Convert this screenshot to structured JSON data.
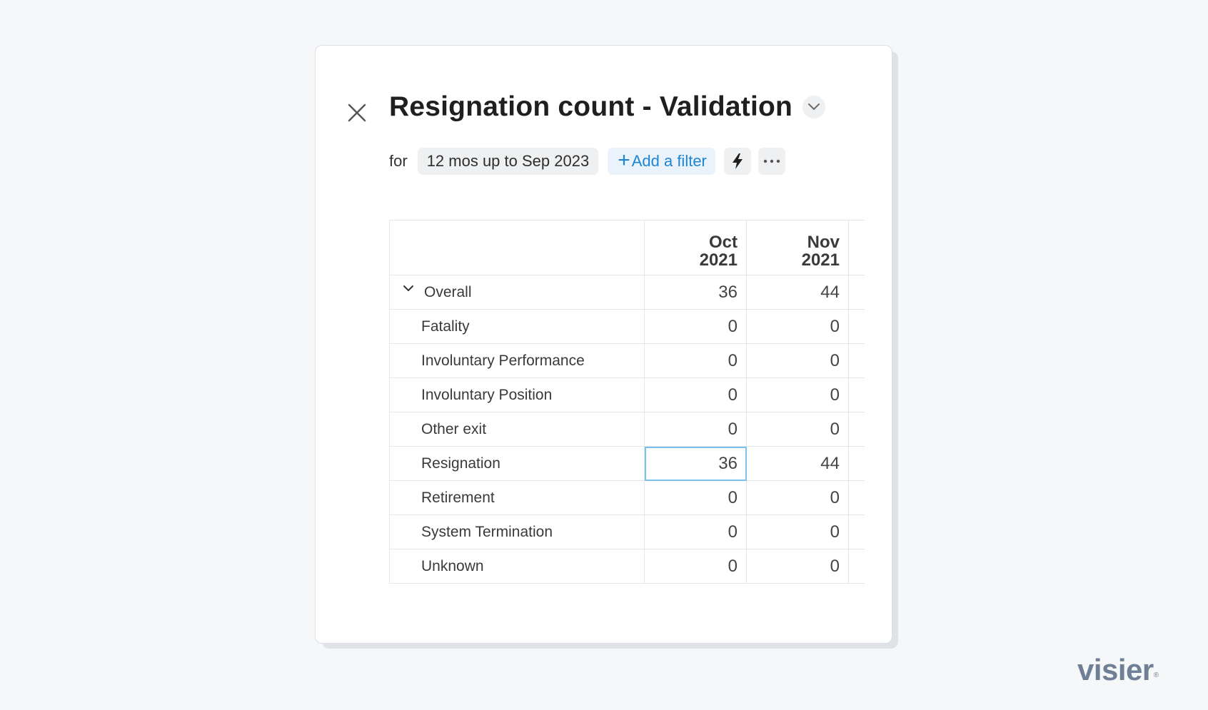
{
  "header": {
    "title": "Resignation count - Validation"
  },
  "filters": {
    "for_label": "for",
    "period": "12 mos up to Sep 2023",
    "add_filter_label": "Add a filter"
  },
  "table": {
    "columns": [
      {
        "line1": "Oct",
        "line2": "2021"
      },
      {
        "line1": "Nov",
        "line2": "2021"
      }
    ],
    "rows": [
      {
        "label": "Overall",
        "values": [
          "36",
          "44"
        ]
      },
      {
        "label": "Fatality",
        "values": [
          "0",
          "0"
        ]
      },
      {
        "label": "Involuntary Performance",
        "values": [
          "0",
          "0"
        ]
      },
      {
        "label": "Involuntary Position",
        "values": [
          "0",
          "0"
        ]
      },
      {
        "label": "Other exit",
        "values": [
          "0",
          "0"
        ]
      },
      {
        "label": "Resignation",
        "values": [
          "36",
          "44"
        ]
      },
      {
        "label": "Retirement",
        "values": [
          "0",
          "0"
        ]
      },
      {
        "label": "System Termination",
        "values": [
          "0",
          "0"
        ]
      },
      {
        "label": "Unknown",
        "values": [
          "0",
          "0"
        ]
      }
    ]
  },
  "logo": {
    "text": "visier",
    "mark": "®"
  }
}
